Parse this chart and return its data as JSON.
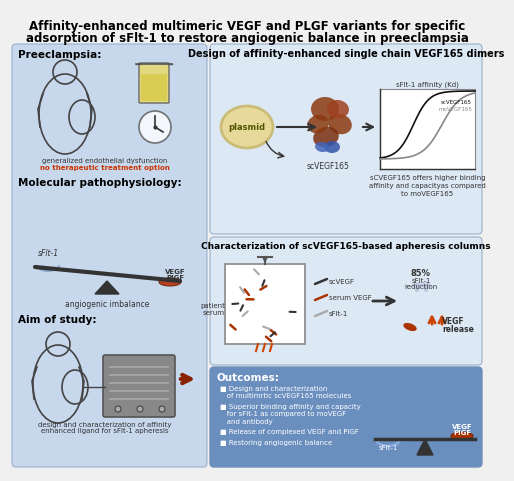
{
  "title_line1": "Affinity-enhanced multimeric VEGF and PLGF variants for specific",
  "title_line2": "adsorption of sFlt-1 to restore angiogenic balance in preeclampsia",
  "bg_color": "#f0f0f0",
  "title_color": "#000000",
  "panel_bg_left": "#c8d8ec",
  "panel_bg_right_top": "#dce8f4",
  "panel_bg_right_mid": "#dce8f4",
  "panel_bg_bottom": "#6a8fbf",
  "outer_border": "#9ab0cc",
  "section_headers": {
    "preeclampsia": "Preeclampsia:",
    "molecular": "Molecular pathophysiology:",
    "aim": "Aim of study:",
    "design": "Design of affinity-enhanced single chain VEGF165 dimers",
    "characterization": "Characterization of scVEGF165-based apheresis columns",
    "outcomes": "Outcomes:"
  },
  "left_panel_texts": {
    "dysfunction": "generalized endothelial dysfunction",
    "no_treatment": "no therapeutic treatment option",
    "angiogenic": "angiogenic imbalance",
    "aim_desc1": "design and characterization of affinity",
    "aim_desc2": "enhanced ligand for sFlt-1 apheresis"
  },
  "right_panel_texts": {
    "scvegf165_label": "scVEGF165",
    "sflt1_affinity": "sFlt-1 affinity (Kd)",
    "scvegf165_legend": "scVEGF165",
    "movegf165_legend": "moVEGF165",
    "higher_binding_1": "sCVEGF165 offers higher binding",
    "higher_binding_2": "affinity and capacityas compared",
    "higher_binding_3": "to moVEGF165",
    "patient_serum": "patient\nserum",
    "scvegf_label": "scVEGF",
    "serum_vegf": "serum VEGF",
    "sflt1_label": "sFlt-1",
    "reduction_1": "85%",
    "reduction_2": "sFlt-1",
    "reduction_3": "reduction",
    "vegf_release_1": "VEGF",
    "vegf_release_2": "release",
    "plasmid": "plasmid"
  },
  "outcomes_texts": [
    [
      "Design and characterization",
      "of multimrtic scVEGF165 molecules"
    ],
    [
      "Superior binding affinity and capacity",
      "for sFlt-1 as compared to moVEGF",
      "and antibody"
    ],
    [
      "Release of complexed VEGF and PlGF"
    ],
    [
      "Restoring angiogenic balance"
    ]
  ],
  "sflt1_label_out": "sFlt-1",
  "vegf_label_out": "VEGF",
  "pigf_label_out": "PlGF"
}
